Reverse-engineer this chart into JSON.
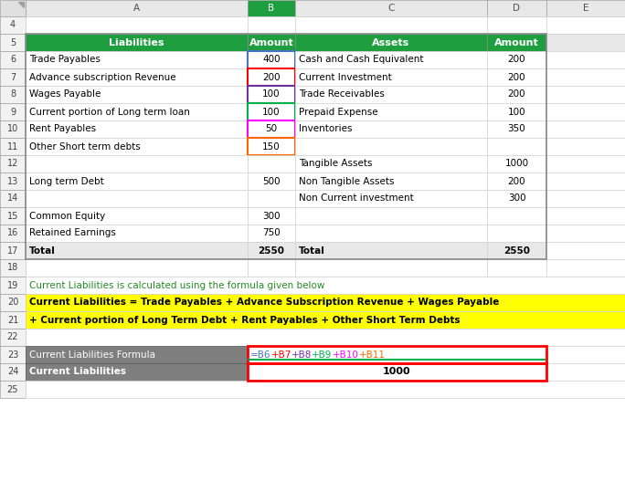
{
  "header_row": {
    "liabilities_label": "Liabilities",
    "amount_label_b": "Amount",
    "assets_label": "Assets",
    "amount_label_d": "Amount",
    "bg_color": "#1e9e3e",
    "text_color": "#ffffff"
  },
  "liabilities_rows": [
    {
      "row": 6,
      "label": "Trade Payables",
      "amount": "400"
    },
    {
      "row": 7,
      "label": "Advance subscription Revenue",
      "amount": "200"
    },
    {
      "row": 8,
      "label": "Wages Payable",
      "amount": "100"
    },
    {
      "row": 9,
      "label": "Current portion of Long term loan",
      "amount": "100"
    },
    {
      "row": 10,
      "label": "Rent Payables",
      "amount": "50"
    },
    {
      "row": 11,
      "label": "Other Short term debts",
      "amount": "150"
    },
    {
      "row": 12,
      "label": "",
      "amount": ""
    },
    {
      "row": 13,
      "label": "Long term Debt",
      "amount": "500"
    },
    {
      "row": 14,
      "label": "",
      "amount": ""
    },
    {
      "row": 15,
      "label": "Common Equity",
      "amount": "300"
    },
    {
      "row": 16,
      "label": "Retained Earnings",
      "amount": "750"
    },
    {
      "row": 17,
      "label": "Total",
      "amount": "2550",
      "bold": true
    }
  ],
  "assets_rows": [
    {
      "row": 6,
      "label": "Cash and Cash Equivalent",
      "amount": "200"
    },
    {
      "row": 7,
      "label": "Current Investment",
      "amount": "200"
    },
    {
      "row": 8,
      "label": "Trade Receivables",
      "amount": "200"
    },
    {
      "row": 9,
      "label": "Prepaid Expense",
      "amount": "100"
    },
    {
      "row": 10,
      "label": "Inventories",
      "amount": "350"
    },
    {
      "row": 11,
      "label": "",
      "amount": ""
    },
    {
      "row": 12,
      "label": "Tangible Assets",
      "amount": "1000"
    },
    {
      "row": 13,
      "label": "Non Tangible Assets",
      "amount": "200"
    },
    {
      "row": 14,
      "label": "Non Current investment",
      "amount": "300"
    },
    {
      "row": 15,
      "label": "",
      "amount": ""
    },
    {
      "row": 16,
      "label": "",
      "amount": ""
    },
    {
      "row": 17,
      "label": "Total",
      "amount": "2550",
      "bold": true
    }
  ],
  "b_border_colors": {
    "6": "#4472c4",
    "7": "#ff0000",
    "8": "#7030a0",
    "9": "#00b050",
    "10": "#ff00ff",
    "11": "#ff6600"
  },
  "row19_text": "Current Liabilities is calculated using the formula given below",
  "row19_color": "#228B22",
  "formula_line1": "Current Liabilities = Trade Payables + Advance Subscription Revenue + Wages Payable",
  "formula_line2": "+ Current portion of Long Term Debt + Rent Payables + Other Short Term Debts",
  "formula_bg": "#ffff00",
  "formula_text_color": "#000000",
  "row23_label": "Current Liabilities Formula",
  "row23_label_bg": "#7f7f7f",
  "row23_label_color": "#ffffff",
  "formula_parts": [
    {
      "text": "=B6",
      "color": "#4472c4"
    },
    {
      "text": "+B7",
      "color": "#ff0000"
    },
    {
      "text": "+B8",
      "color": "#7030a0"
    },
    {
      "text": "+B9",
      "color": "#00b050"
    },
    {
      "text": "+B10",
      "color": "#ff00ff"
    },
    {
      "text": "+B11",
      "color": "#ff6600"
    }
  ],
  "row24_label": "Current Liabilities",
  "row24_label_bg": "#7f7f7f",
  "row24_label_color": "#ffffff",
  "row24_value": "1000",
  "col_header_bg": "#e8e8e8",
  "row_num_bg": "#f2f2f2",
  "grid_color": "#b8b8b8",
  "data_grid_color": "#d3d3d3",
  "total_row_bg": "#e8e8e8",
  "red_border": "#ff0000",
  "green_line": "#00b050"
}
